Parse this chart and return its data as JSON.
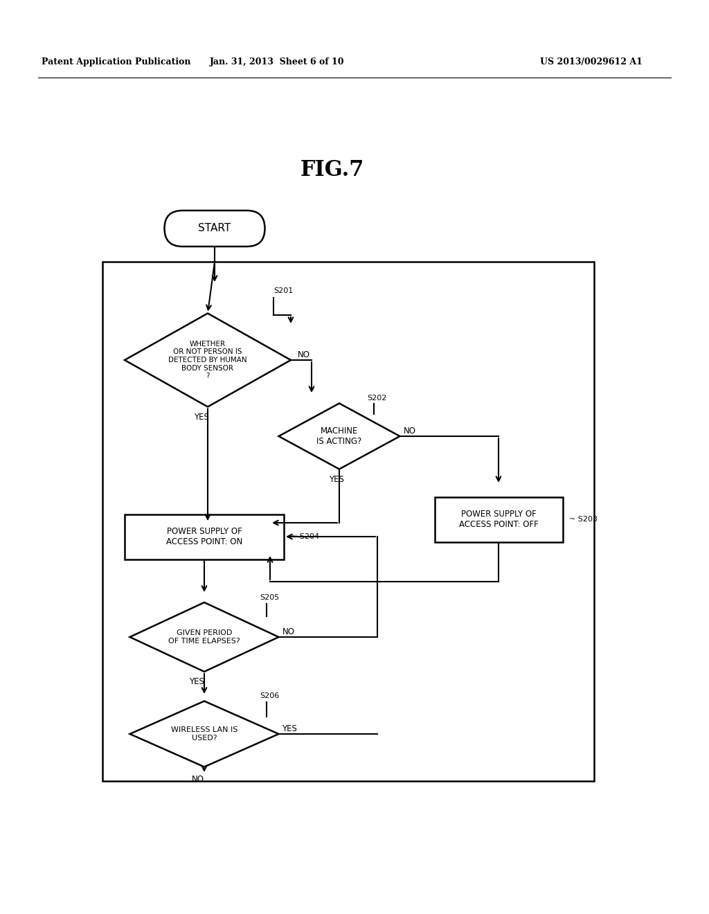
{
  "bg_color": "#ffffff",
  "header_left": "Patent Application Publication",
  "header_mid": "Jan. 31, 2013  Sheet 6 of 10",
  "header_right": "US 2013/0029612 A1",
  "fig_title": "FIG.7"
}
